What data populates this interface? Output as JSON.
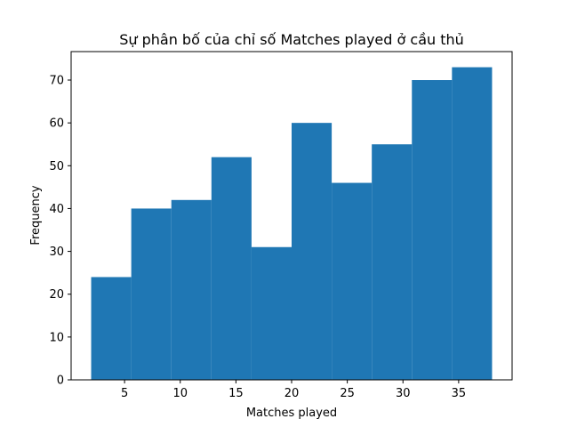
{
  "chart_data": {
    "type": "bar",
    "title": "Sự phân bố của chỉ số Matches played ở cầu thủ",
    "xlabel": "Matches played",
    "ylabel": "Frequency",
    "bin_edges": [
      2,
      5.6,
      9.2,
      12.8,
      16.4,
      20,
      23.6,
      27.2,
      30.8,
      34.4,
      38
    ],
    "values": [
      24,
      40,
      42,
      52,
      31,
      60,
      46,
      55,
      70,
      73
    ],
    "xlim": [
      0.2,
      39.8
    ],
    "ylim": [
      0,
      76.65
    ],
    "xticks": [
      5,
      10,
      15,
      20,
      25,
      30,
      35
    ],
    "yticks": [
      0,
      10,
      20,
      30,
      40,
      50,
      60,
      70
    ],
    "bar_color": "#1f77b4",
    "grid": false
  }
}
